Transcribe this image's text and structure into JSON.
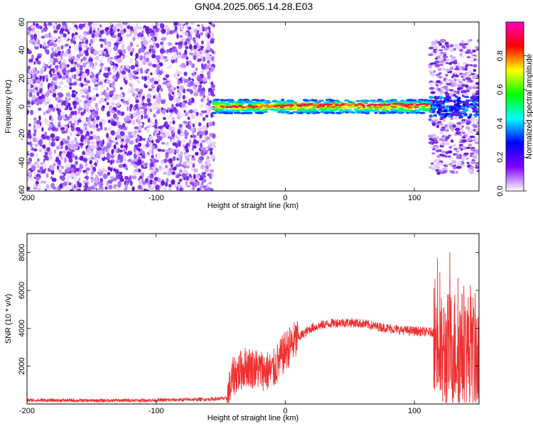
{
  "chart_data": [
    {
      "type": "heatmap",
      "title": "GN04.2025.065.14.28.E03",
      "xlabel": "Height of straight line (km)",
      "ylabel": "Frequency (Hz)",
      "xlim": [
        -200,
        150
      ],
      "ylim": [
        -60,
        60
      ],
      "xticks": [
        -200,
        -100,
        0,
        100
      ],
      "yticks": [
        -60,
        -40,
        -20,
        0,
        20,
        40,
        60
      ],
      "colorbar": {
        "label": "Normalized spectral amplitude",
        "range": [
          0,
          1
        ],
        "ticks": [
          "0.0",
          "0.2",
          "0.4",
          "0.6",
          "0.8"
        ],
        "colormap": [
          "#ffffff",
          "#8000ff",
          "#0000ff",
          "#00ffff",
          "#00ff00",
          "#ffff00",
          "#ff0000",
          "#ff00c0"
        ]
      },
      "regions": [
        {
          "x": [
            -200,
            -55
          ],
          "f": [
            -60,
            60
          ],
          "amplitude": 0.1
        },
        {
          "x": [
            -55,
            112
          ],
          "f": [
            -3,
            3
          ],
          "amplitude": 0.9
        },
        {
          "x": [
            112,
            150
          ],
          "f": [
            -50,
            45
          ],
          "amplitude": 0.2
        }
      ]
    },
    {
      "type": "line",
      "xlabel": "Height of straight line (km)",
      "ylabel": "SNR (10 * v/v)",
      "xlim": [
        -200,
        150
      ],
      "ylim": [
        0,
        9000
      ],
      "xticks": [
        -200,
        -100,
        0,
        100
      ],
      "yticks": [
        2000,
        4000,
        6000,
        8000
      ],
      "color": "#f03030",
      "x": [
        -200,
        -150,
        -100,
        -60,
        -45,
        -40,
        -30,
        -20,
        -10,
        0,
        10,
        20,
        30,
        40,
        50,
        60,
        70,
        80,
        90,
        100,
        110,
        116,
        120,
        130,
        140,
        150
      ],
      "y": [
        200,
        180,
        200,
        250,
        300,
        1500,
        2000,
        1800,
        1700,
        2800,
        3500,
        4000,
        4200,
        4300,
        4300,
        4250,
        4100,
        4000,
        3900,
        3850,
        3800,
        3800,
        2500,
        3000,
        2800,
        2600
      ]
    }
  ]
}
